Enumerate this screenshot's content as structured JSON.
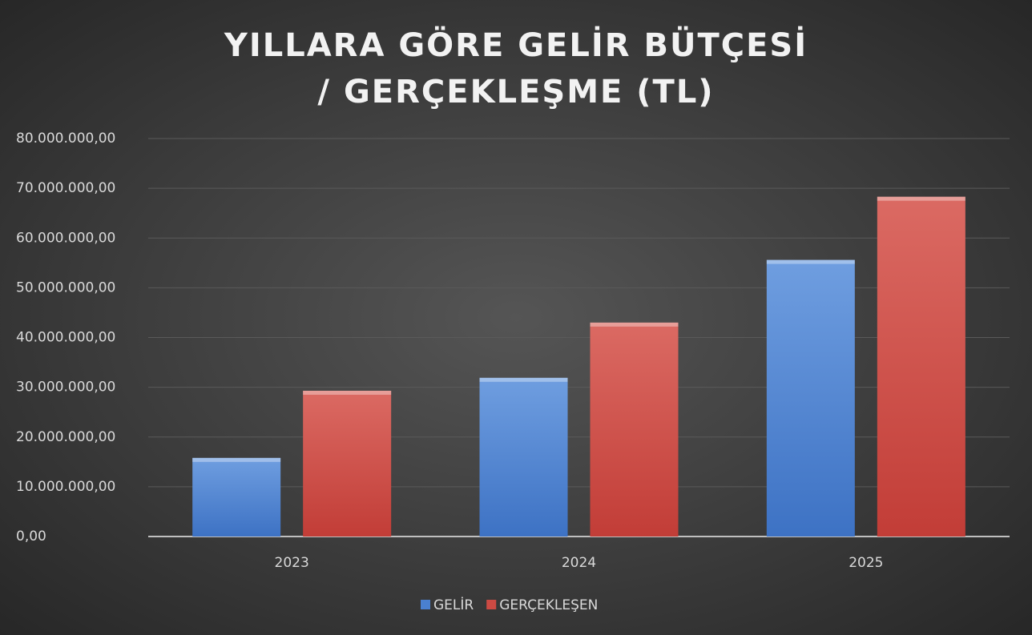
{
  "chart_data": {
    "type": "bar",
    "title": "YILLARA GÖRE GELİR BÜTÇESİ / GERÇEKLEŞME (TL)",
    "categories": [
      "2023",
      "2024",
      "2025"
    ],
    "series": [
      {
        "name": "GELİR",
        "color": "#4a80d0",
        "values": [
          15800000,
          31900000,
          55600000
        ]
      },
      {
        "name": "GERÇEKLEŞEN",
        "color": "#cc4a43",
        "values": [
          29300000,
          43000000,
          68300000
        ]
      }
    ],
    "ylim": [
      0,
      80000000
    ],
    "yticks": [
      {
        "value": 0,
        "label": "0,00"
      },
      {
        "value": 10000000,
        "label": "10.000.000,00"
      },
      {
        "value": 20000000,
        "label": "20.000.000,00"
      },
      {
        "value": 30000000,
        "label": "30.000.000,00"
      },
      {
        "value": 40000000,
        "label": "40.000.000,00"
      },
      {
        "value": 50000000,
        "label": "50.000.000,00"
      },
      {
        "value": 60000000,
        "label": "60.000.000,00"
      },
      {
        "value": 70000000,
        "label": "70.000.000,00"
      },
      {
        "value": 80000000,
        "label": "80.000.000,00"
      }
    ],
    "grid": true,
    "legend": "bottom"
  }
}
